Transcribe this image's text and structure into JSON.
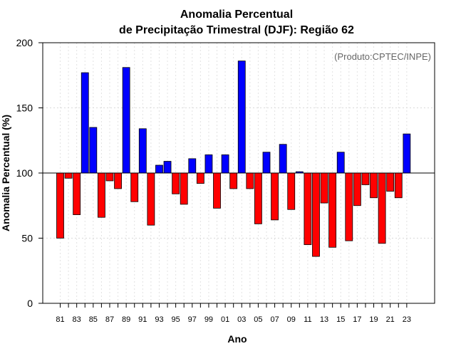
{
  "chart_data": {
    "type": "bar",
    "title_line1": "Anomalia Percentual",
    "title_line2": "de Precipitação Trimestral (DJF): Região 62",
    "xlabel": "Ano",
    "ylabel": "Anomalia Percentual (%)",
    "credit": "(Produto:CPTEC/INPE)",
    "ylim": [
      0,
      200
    ],
    "yticks": [
      "0",
      "50",
      "100",
      "150",
      "200"
    ],
    "baseline": 100,
    "grid": true,
    "colors": {
      "above": "#0000ff",
      "below": "#ff0000"
    },
    "categories": [
      "81",
      "82",
      "83",
      "84",
      "85",
      "86",
      "87",
      "88",
      "89",
      "90",
      "91",
      "92",
      "93",
      "94",
      "95",
      "96",
      "97",
      "98",
      "99",
      "00",
      "01",
      "02",
      "03",
      "04",
      "05",
      "06",
      "07",
      "08",
      "09",
      "10",
      "11",
      "12",
      "13",
      "14",
      "15",
      "16",
      "17",
      "18",
      "19",
      "20",
      "21",
      "22",
      "23"
    ],
    "xtick_labels": [
      "81",
      "83",
      "85",
      "87",
      "89",
      "91",
      "93",
      "95",
      "97",
      "99",
      "01",
      "03",
      "05",
      "07",
      "09",
      "11",
      "13",
      "15",
      "17",
      "19",
      "21",
      "23"
    ],
    "values": [
      50,
      96,
      68,
      177,
      135,
      66,
      94,
      88,
      181,
      78,
      134,
      60,
      106,
      109,
      84,
      76,
      111,
      92,
      114,
      73,
      114,
      88,
      186,
      88,
      61,
      116,
      64,
      122,
      72,
      101,
      45,
      36,
      77,
      43,
      116,
      48,
      75,
      91,
      81,
      46,
      86,
      81,
      130
    ]
  }
}
